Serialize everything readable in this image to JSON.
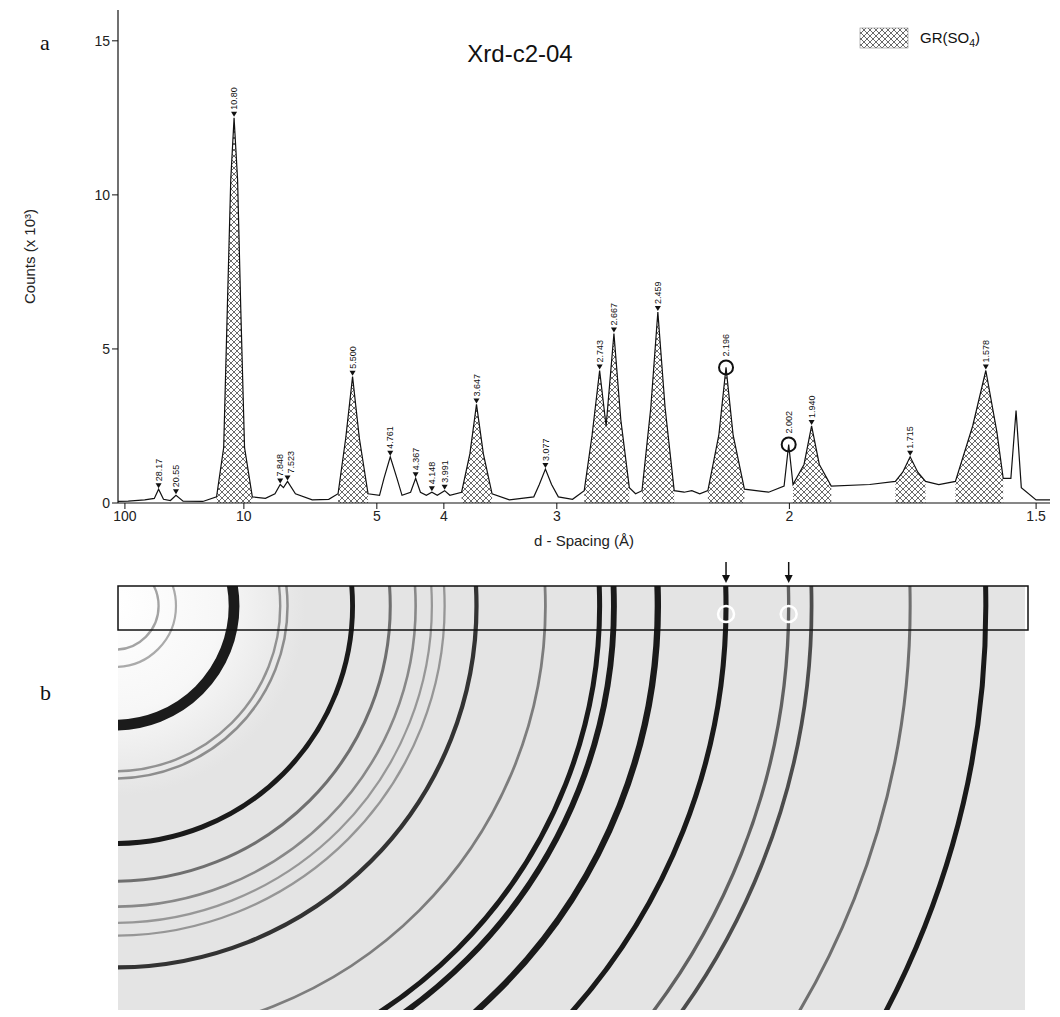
{
  "chart_data": {
    "type": "line",
    "title": "Xrd-c2-04",
    "panel_label": "a",
    "xlabel": "d - Spacing (Å)",
    "ylabel": "Counts (x 10³)",
    "xlim": [
      210,
      1.48
    ],
    "xticks": [
      100,
      10,
      5,
      4,
      3,
      2,
      1.5
    ],
    "ylim": [
      0,
      16
    ],
    "yticks": [
      0,
      5,
      10,
      15
    ],
    "grid": false,
    "legend": "upper right",
    "x": [
      210,
      80,
      40,
      31,
      28.17,
      25.5,
      22.5,
      20.55,
      18.5,
      14.5,
      12.6,
      11.8,
      11.43,
      11.1,
      10.8,
      10.5,
      10.24,
      9.95,
      9.4,
      8.6,
      8.1,
      7.848,
      7.7,
      7.523,
      7.2,
      6.6,
      6.1,
      5.85,
      5.66,
      5.5,
      5.35,
      5.17,
      4.95,
      4.87,
      4.761,
      4.65,
      4.57,
      4.44,
      4.367,
      4.3,
      4.22,
      4.148,
      4.08,
      3.991,
      3.93,
      3.8,
      3.713,
      3.647,
      3.581,
      3.5,
      3.35,
      3.16,
      3.12,
      3.077,
      3.035,
      2.99,
      2.9,
      2.83,
      2.785,
      2.743,
      2.708,
      2.667,
      2.632,
      2.59,
      2.56,
      2.53,
      2.49,
      2.459,
      2.428,
      2.39,
      2.35,
      2.32,
      2.29,
      2.26,
      2.221,
      2.196,
      2.172,
      2.135,
      2.06,
      2.015,
      2.002,
      1.99,
      1.96,
      1.94,
      1.92,
      1.89,
      1.8,
      1.745,
      1.73,
      1.715,
      1.7,
      1.685,
      1.66,
      1.63,
      1.6,
      1.578,
      1.56,
      1.55,
      1.538,
      1.53,
      1.522,
      1.5,
      1.48
    ],
    "series": [
      {
        "type": "line",
        "color": "#111111",
        "values": [
          0.05,
          0.06,
          0.1,
          0.15,
          0.45,
          0.12,
          0.08,
          0.25,
          0.06,
          0.05,
          0.2,
          1.8,
          6.3,
          10.5,
          12.5,
          10.5,
          6.3,
          1.8,
          0.2,
          0.15,
          0.3,
          0.6,
          0.5,
          0.7,
          0.3,
          0.1,
          0.12,
          0.3,
          2.1,
          4.1,
          2.1,
          0.3,
          0.25,
          0.8,
          1.5,
          0.8,
          0.25,
          0.35,
          0.8,
          0.35,
          0.25,
          0.35,
          0.25,
          0.4,
          0.25,
          0.35,
          1.6,
          3.2,
          1.6,
          0.3,
          0.1,
          0.2,
          0.6,
          1.1,
          0.6,
          0.2,
          0.12,
          0.4,
          2.2,
          4.3,
          2.5,
          5.5,
          2.7,
          0.5,
          0.3,
          0.4,
          3.1,
          6.2,
          3.1,
          0.4,
          0.35,
          0.4,
          0.3,
          0.4,
          2.2,
          4.4,
          2.2,
          0.45,
          0.35,
          0.55,
          1.9,
          0.6,
          1.25,
          2.5,
          1.25,
          0.55,
          0.6,
          0.7,
          1.0,
          1.5,
          1.0,
          0.7,
          0.6,
          0.7,
          2.5,
          4.3,
          2.3,
          0.8,
          0.8,
          3.0,
          0.5,
          0.1,
          0.1
        ]
      },
      {
        "name": "GR(SO4)",
        "type": "area",
        "color": "#444444",
        "values": [
          null,
          null,
          null,
          null,
          null,
          null,
          null,
          null,
          null,
          null,
          0.2,
          1.8,
          6.3,
          10.5,
          12.5,
          10.5,
          6.3,
          1.8,
          0.2,
          null,
          null,
          null,
          null,
          null,
          null,
          null,
          null,
          0.3,
          2.1,
          4.1,
          2.1,
          0.3,
          null,
          null,
          null,
          null,
          null,
          null,
          null,
          null,
          null,
          null,
          null,
          null,
          null,
          0.35,
          1.6,
          3.2,
          1.6,
          0.3,
          null,
          null,
          null,
          null,
          null,
          null,
          null,
          0.4,
          2.2,
          4.3,
          2.5,
          5.5,
          2.7,
          0.5,
          null,
          0.4,
          3.1,
          6.2,
          3.1,
          0.4,
          null,
          null,
          null,
          0.4,
          2.2,
          4.4,
          2.2,
          0.45,
          null,
          null,
          null,
          0.6,
          1.25,
          2.5,
          1.25,
          0.55,
          null,
          0.7,
          1.0,
          1.5,
          1.0,
          0.7,
          null,
          0.7,
          2.5,
          4.3,
          2.3,
          0.8,
          null,
          null,
          null,
          null,
          null
        ]
      }
    ],
    "annotations": [
      {
        "x": 28.17,
        "y": 0.45,
        "label": "28.17",
        "marker": "triangle"
      },
      {
        "x": 20.55,
        "y": 0.25,
        "label": "20.55",
        "marker": "triangle"
      },
      {
        "x": 10.8,
        "y": 12.5,
        "label": "10.80",
        "marker": "triangle"
      },
      {
        "x": 7.848,
        "y": 0.6,
        "label": "7.848",
        "marker": "triangle"
      },
      {
        "x": 7.523,
        "y": 0.7,
        "label": "7.523",
        "marker": "triangle"
      },
      {
        "x": 5.5,
        "y": 4.1,
        "label": "5.500",
        "marker": "triangle"
      },
      {
        "x": 4.761,
        "y": 1.5,
        "label": "4.761",
        "marker": "triangle"
      },
      {
        "x": 4.367,
        "y": 0.8,
        "label": "4.367",
        "marker": "triangle"
      },
      {
        "x": 4.148,
        "y": 0.35,
        "label": "4.148",
        "marker": "triangle"
      },
      {
        "x": 3.991,
        "y": 0.4,
        "label": "3.991",
        "marker": "triangle"
      },
      {
        "x": 3.647,
        "y": 3.2,
        "label": "3.647",
        "marker": "triangle"
      },
      {
        "x": 3.077,
        "y": 1.1,
        "label": "3.077",
        "marker": "triangle"
      },
      {
        "x": 2.743,
        "y": 4.3,
        "label": "2.743",
        "marker": "triangle"
      },
      {
        "x": 2.667,
        "y": 5.5,
        "label": "2.667",
        "marker": "triangle"
      },
      {
        "x": 2.459,
        "y": 6.2,
        "label": "2.459",
        "marker": "triangle"
      },
      {
        "x": 2.196,
        "y": 4.4,
        "label": "2.196",
        "marker": "circle"
      },
      {
        "x": 2.002,
        "y": 1.9,
        "label": "2.002",
        "marker": "circle"
      },
      {
        "x": 1.94,
        "y": 2.5,
        "label": "1.940",
        "marker": "triangle"
      },
      {
        "x": 1.715,
        "y": 1.5,
        "label": "1.715",
        "marker": "triangle"
      },
      {
        "x": 1.578,
        "y": 4.3,
        "label": "1.578",
        "marker": "triangle"
      }
    ]
  },
  "image": {
    "panel_label": "b"
  }
}
